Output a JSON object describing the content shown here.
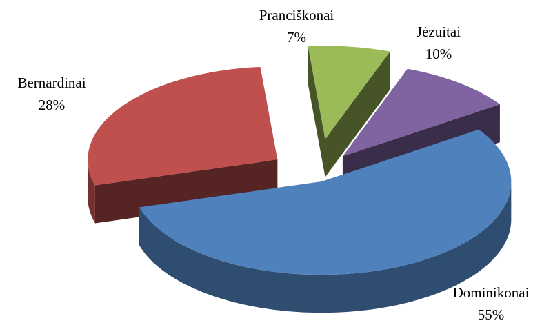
{
  "chart_data": {
    "type": "pie",
    "categories": [
      "Dominikonai",
      "Bernardinai",
      "Pranciškonai",
      "Jėzuitai"
    ],
    "values": [
      55,
      28,
      7,
      10
    ],
    "value_labels": [
      "55%",
      "28%",
      "7%",
      "10%"
    ],
    "colors": [
      "#4f81bd",
      "#c0504d",
      "#9bbb59",
      "#8064a2"
    ]
  }
}
